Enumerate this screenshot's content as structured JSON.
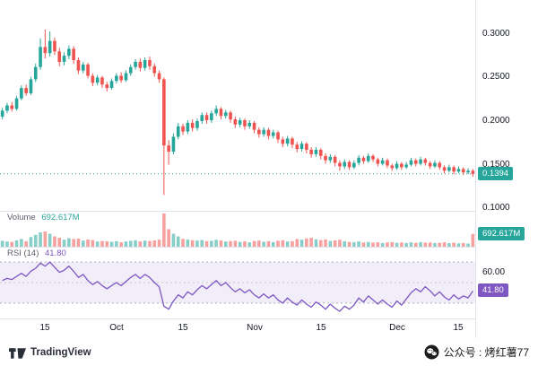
{
  "colors": {
    "up": "#26a69a",
    "down": "#ef5350",
    "rsi_line": "#7e57c2",
    "axis_text": "#131722",
    "muted_text": "#787b86",
    "grid": "#e0e3eb",
    "rsi_band_fill": "rgba(126,87,194,0.10)"
  },
  "price_pane": {
    "last_price_text": "0.1394",
    "axis_labels": [
      {
        "value": 0.3,
        "label": "0.3000"
      },
      {
        "value": 0.25,
        "label": "0.2500"
      },
      {
        "value": 0.2,
        "label": "0.2000"
      },
      {
        "value": 0.15,
        "label": "0.1500"
      },
      {
        "value": 0.1,
        "label": "0.1000"
      }
    ]
  },
  "volume": {
    "title": "Volume",
    "value_text": "692.617M"
  },
  "rsi": {
    "title": "RSI (14)",
    "value_text": "41.80",
    "axis_label": {
      "value": 60,
      "label": "60.00"
    }
  },
  "time_axis": {
    "ticks": [
      {
        "index": 9,
        "label": "15"
      },
      {
        "index": 24,
        "label": "Oct"
      },
      {
        "index": 38,
        "label": "15"
      },
      {
        "index": 53,
        "label": "Nov"
      },
      {
        "index": 67,
        "label": "15"
      },
      {
        "index": 83,
        "label": "Dec"
      },
      {
        "index": 96,
        "label": "15"
      }
    ]
  },
  "footer": {
    "brand": "TradingView",
    "watermark": "公众号 : 烤红薯77"
  },
  "chart_data": [
    {
      "type": "candlestick",
      "title": "",
      "ylim": [
        0.097,
        0.339
      ],
      "yticks": [
        "0.3000",
        "0.2500",
        "0.2000",
        "0.1500",
        "0.1000"
      ],
      "ytick_values": [
        0.3,
        0.25,
        0.2,
        0.15,
        0.1
      ],
      "last_price": 0.1394,
      "x_tick_labels": [
        "15",
        "Oct",
        "15",
        "Nov",
        "15",
        "Dec",
        "15"
      ],
      "ohlcv_format": [
        "open",
        "high",
        "low",
        "close",
        "volume_millions"
      ],
      "ohlcv": [
        [
          0.205,
          0.215,
          0.202,
          0.212,
          320
        ],
        [
          0.212,
          0.221,
          0.209,
          0.218,
          280
        ],
        [
          0.218,
          0.222,
          0.211,
          0.214,
          260
        ],
        [
          0.214,
          0.229,
          0.212,
          0.226,
          340
        ],
        [
          0.226,
          0.241,
          0.224,
          0.238,
          420
        ],
        [
          0.238,
          0.242,
          0.229,
          0.232,
          300
        ],
        [
          0.232,
          0.251,
          0.23,
          0.248,
          520
        ],
        [
          0.248,
          0.266,
          0.245,
          0.262,
          640
        ],
        [
          0.262,
          0.295,
          0.259,
          0.285,
          780
        ],
        [
          0.285,
          0.305,
          0.272,
          0.278,
          820
        ],
        [
          0.278,
          0.303,
          0.274,
          0.292,
          700
        ],
        [
          0.292,
          0.296,
          0.276,
          0.28,
          560
        ],
        [
          0.28,
          0.284,
          0.263,
          0.268,
          480
        ],
        [
          0.268,
          0.279,
          0.264,
          0.275,
          380
        ],
        [
          0.275,
          0.287,
          0.271,
          0.283,
          460
        ],
        [
          0.283,
          0.286,
          0.266,
          0.27,
          420
        ],
        [
          0.27,
          0.273,
          0.254,
          0.258,
          440
        ],
        [
          0.258,
          0.268,
          0.255,
          0.265,
          330
        ],
        [
          0.265,
          0.267,
          0.249,
          0.252,
          390
        ],
        [
          0.252,
          0.255,
          0.24,
          0.244,
          360
        ],
        [
          0.244,
          0.253,
          0.241,
          0.25,
          280
        ],
        [
          0.25,
          0.252,
          0.238,
          0.242,
          310
        ],
        [
          0.242,
          0.245,
          0.234,
          0.238,
          290
        ],
        [
          0.238,
          0.249,
          0.236,
          0.246,
          270
        ],
        [
          0.246,
          0.255,
          0.243,
          0.252,
          300
        ],
        [
          0.252,
          0.256,
          0.244,
          0.247,
          240
        ],
        [
          0.247,
          0.258,
          0.245,
          0.255,
          280
        ],
        [
          0.255,
          0.265,
          0.252,
          0.262,
          320
        ],
        [
          0.262,
          0.271,
          0.259,
          0.268,
          350
        ],
        [
          0.268,
          0.272,
          0.257,
          0.261,
          290
        ],
        [
          0.261,
          0.273,
          0.258,
          0.27,
          330
        ],
        [
          0.27,
          0.274,
          0.259,
          0.263,
          310
        ],
        [
          0.263,
          0.266,
          0.251,
          0.255,
          340
        ],
        [
          0.255,
          0.258,
          0.244,
          0.248,
          380
        ],
        [
          0.248,
          0.25,
          0.115,
          0.172,
          1800
        ],
        [
          0.172,
          0.178,
          0.15,
          0.165,
          950
        ],
        [
          0.165,
          0.186,
          0.162,
          0.182,
          700
        ],
        [
          0.182,
          0.198,
          0.179,
          0.194,
          560
        ],
        [
          0.194,
          0.197,
          0.184,
          0.188,
          430
        ],
        [
          0.188,
          0.201,
          0.185,
          0.198,
          390
        ],
        [
          0.198,
          0.202,
          0.188,
          0.192,
          350
        ],
        [
          0.192,
          0.203,
          0.189,
          0.2,
          330
        ],
        [
          0.2,
          0.21,
          0.197,
          0.207,
          360
        ],
        [
          0.207,
          0.21,
          0.197,
          0.201,
          300
        ],
        [
          0.201,
          0.212,
          0.198,
          0.209,
          320
        ],
        [
          0.209,
          0.218,
          0.206,
          0.214,
          380
        ],
        [
          0.214,
          0.216,
          0.202,
          0.206,
          340
        ],
        [
          0.206,
          0.213,
          0.203,
          0.21,
          280
        ],
        [
          0.21,
          0.212,
          0.198,
          0.202,
          300
        ],
        [
          0.202,
          0.205,
          0.192,
          0.196,
          320
        ],
        [
          0.196,
          0.204,
          0.193,
          0.201,
          260
        ],
        [
          0.201,
          0.203,
          0.19,
          0.194,
          290
        ],
        [
          0.194,
          0.201,
          0.191,
          0.198,
          240
        ],
        [
          0.198,
          0.2,
          0.186,
          0.19,
          310
        ],
        [
          0.19,
          0.193,
          0.181,
          0.185,
          330
        ],
        [
          0.185,
          0.193,
          0.182,
          0.19,
          270
        ],
        [
          0.19,
          0.192,
          0.179,
          0.183,
          300
        ],
        [
          0.183,
          0.19,
          0.18,
          0.187,
          250
        ],
        [
          0.187,
          0.189,
          0.175,
          0.179,
          320
        ],
        [
          0.179,
          0.182,
          0.17,
          0.174,
          350
        ],
        [
          0.174,
          0.183,
          0.171,
          0.18,
          280
        ],
        [
          0.18,
          0.182,
          0.169,
          0.173,
          300
        ],
        [
          0.173,
          0.176,
          0.164,
          0.168,
          420
        ],
        [
          0.168,
          0.177,
          0.165,
          0.174,
          380
        ],
        [
          0.174,
          0.176,
          0.163,
          0.167,
          450
        ],
        [
          0.167,
          0.17,
          0.158,
          0.162,
          480
        ],
        [
          0.162,
          0.17,
          0.159,
          0.167,
          400
        ],
        [
          0.167,
          0.169,
          0.156,
          0.16,
          360
        ],
        [
          0.16,
          0.163,
          0.151,
          0.155,
          390
        ],
        [
          0.155,
          0.162,
          0.152,
          0.159,
          310
        ],
        [
          0.159,
          0.161,
          0.148,
          0.152,
          340
        ],
        [
          0.152,
          0.155,
          0.143,
          0.148,
          380
        ],
        [
          0.148,
          0.156,
          0.145,
          0.153,
          290
        ],
        [
          0.153,
          0.155,
          0.144,
          0.147,
          260
        ],
        [
          0.147,
          0.155,
          0.145,
          0.152,
          240
        ],
        [
          0.152,
          0.161,
          0.149,
          0.158,
          280
        ],
        [
          0.158,
          0.16,
          0.151,
          0.154,
          230
        ],
        [
          0.154,
          0.163,
          0.152,
          0.16,
          260
        ],
        [
          0.16,
          0.162,
          0.153,
          0.156,
          220
        ],
        [
          0.156,
          0.158,
          0.148,
          0.151,
          240
        ],
        [
          0.151,
          0.158,
          0.149,
          0.155,
          200
        ],
        [
          0.155,
          0.157,
          0.146,
          0.149,
          230
        ],
        [
          0.149,
          0.151,
          0.143,
          0.146,
          250
        ],
        [
          0.146,
          0.154,
          0.144,
          0.151,
          210
        ],
        [
          0.151,
          0.153,
          0.144,
          0.147,
          230
        ],
        [
          0.147,
          0.153,
          0.145,
          0.15,
          200
        ],
        [
          0.15,
          0.158,
          0.148,
          0.155,
          240
        ],
        [
          0.155,
          0.157,
          0.148,
          0.151,
          210
        ],
        [
          0.151,
          0.159,
          0.149,
          0.156,
          250
        ],
        [
          0.156,
          0.158,
          0.149,
          0.152,
          220
        ],
        [
          0.152,
          0.154,
          0.145,
          0.148,
          230
        ],
        [
          0.148,
          0.155,
          0.146,
          0.152,
          200
        ],
        [
          0.152,
          0.154,
          0.144,
          0.147,
          210
        ],
        [
          0.147,
          0.149,
          0.14,
          0.143,
          240
        ],
        [
          0.143,
          0.15,
          0.141,
          0.147,
          190
        ],
        [
          0.147,
          0.149,
          0.139,
          0.142,
          220
        ],
        [
          0.142,
          0.148,
          0.14,
          0.145,
          180
        ],
        [
          0.145,
          0.147,
          0.138,
          0.141,
          200
        ],
        [
          0.141,
          0.146,
          0.139,
          0.143,
          170
        ],
        [
          0.143,
          0.145,
          0.136,
          0.1394,
          692.617
        ]
      ]
    },
    {
      "type": "bar",
      "name": "Volume",
      "unit": "M",
      "current": 692.617,
      "current_label": "692.617M",
      "values_source": "5th element of each ohlcv tuple in chart_data[0]",
      "color_rule": "green if close >= open else red, 55% opacity"
    },
    {
      "type": "line",
      "name": "RSI (14)",
      "length": 14,
      "current": 41.8,
      "scale": [
        15,
        85
      ],
      "bands": {
        "upper": 70,
        "middle": 50,
        "lower": 30
      },
      "visible_axis_label": "60.00",
      "color": "#7e57c2",
      "values": [
        52,
        54,
        53,
        56,
        59,
        56,
        61,
        64,
        69,
        66,
        70,
        65,
        60,
        62,
        66,
        61,
        55,
        58,
        52,
        48,
        51,
        47,
        44,
        47,
        50,
        47,
        51,
        55,
        58,
        54,
        58,
        55,
        50,
        46,
        27,
        24,
        32,
        38,
        35,
        41,
        38,
        43,
        47,
        44,
        48,
        52,
        47,
        50,
        45,
        41,
        44,
        40,
        43,
        38,
        35,
        39,
        35,
        38,
        33,
        30,
        35,
        31,
        28,
        33,
        29,
        26,
        31,
        28,
        24,
        29,
        25,
        22,
        27,
        24,
        28,
        35,
        31,
        37,
        33,
        29,
        33,
        29,
        26,
        32,
        28,
        34,
        40,
        44,
        41,
        46,
        42,
        37,
        41,
        36,
        33,
        38,
        34,
        37,
        35,
        41.8
      ]
    }
  ]
}
